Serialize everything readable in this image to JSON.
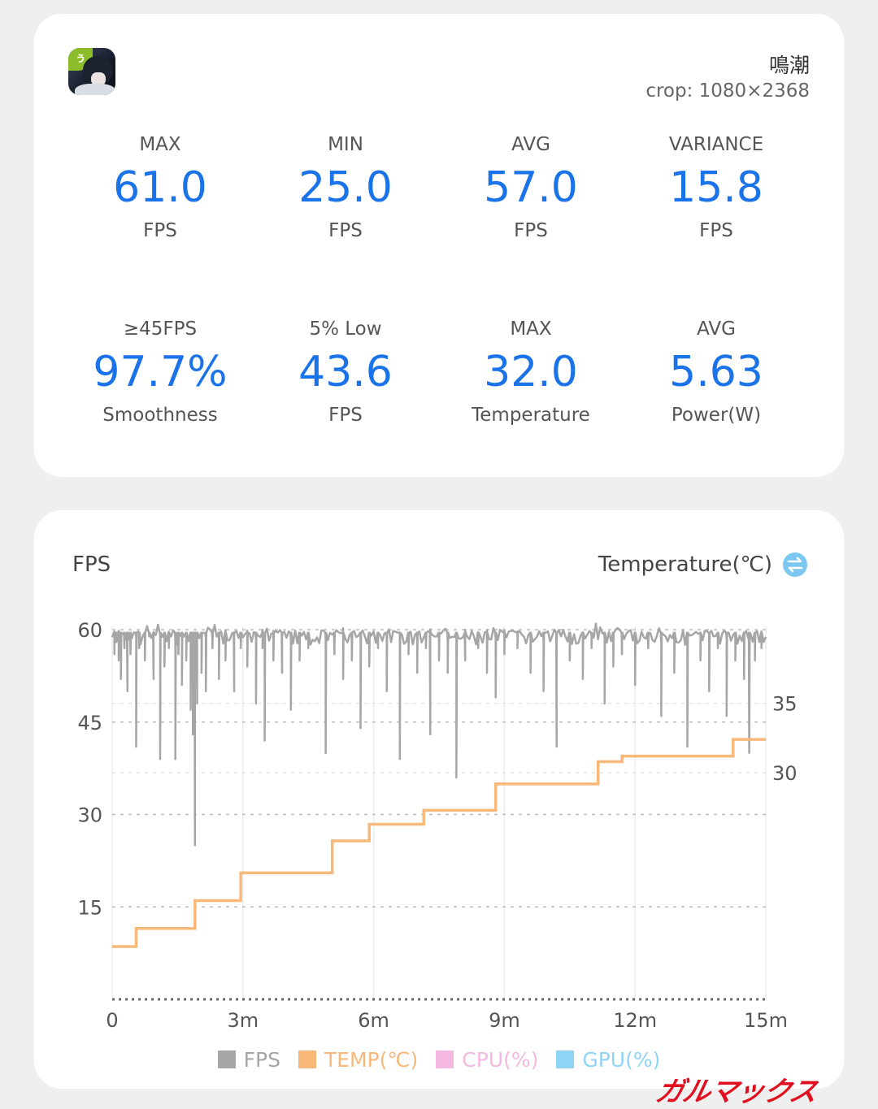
{
  "app": {
    "name": "鳴潮",
    "crop": "crop: 1080×2368"
  },
  "stats": [
    {
      "label": "MAX",
      "value": "61.0",
      "unit": "FPS"
    },
    {
      "label": "MIN",
      "value": "25.0",
      "unit": "FPS"
    },
    {
      "label": "AVG",
      "value": "57.0",
      "unit": "FPS"
    },
    {
      "label": "VARIANCE",
      "value": "15.8",
      "unit": "FPS"
    },
    {
      "label": "≥45FPS",
      "value": "97.7%",
      "unit": "Smoothness"
    },
    {
      "label": "5% Low",
      "value": "43.6",
      "unit": "FPS"
    },
    {
      "label": "MAX",
      "value": "32.0",
      "unit": "Temperature"
    },
    {
      "label": "AVG",
      "value": "5.63",
      "unit": "Power(W)"
    }
  ],
  "chart_header": {
    "left": "FPS",
    "right": "Temperature(℃)"
  },
  "colors": {
    "accent": "#1a73e8",
    "fps": "#a6a6a6",
    "temp": "#f7b87a",
    "cpu": "#f5b8e0",
    "gpu": "#8fd3f5",
    "swap_icon": "#7cc6f2"
  },
  "legend": [
    {
      "label": "FPS",
      "color": "#a6a6a6"
    },
    {
      "label": "TEMP(℃)",
      "color": "#f7b87a"
    },
    {
      "label": "CPU(%)",
      "color": "#f5b8e0"
    },
    {
      "label": "GPU(%)",
      "color": "#8fd3f5"
    }
  ],
  "watermark": "ガルマックス",
  "chart_data": {
    "type": "line",
    "x_unit": "minutes",
    "x_range": [
      0,
      15
    ],
    "x_ticks": [
      0,
      3,
      6,
      9,
      12,
      15
    ],
    "x_tick_labels": [
      "0",
      "3m",
      "6m",
      "9m",
      "12m",
      "15m"
    ],
    "y_left_range": [
      0,
      60
    ],
    "y_left_ticks": [
      15,
      30,
      45,
      60
    ],
    "y_right_range": [
      13.7,
      40.3
    ],
    "y_right_ticks": [
      30,
      35
    ],
    "grid": true,
    "fps_baseline": 60,
    "fps_dips": [
      [
        0.05,
        56
      ],
      [
        0.1,
        58
      ],
      [
        0.15,
        55
      ],
      [
        0.2,
        52
      ],
      [
        0.28,
        57
      ],
      [
        0.35,
        50
      ],
      [
        0.42,
        56
      ],
      [
        0.55,
        41
      ],
      [
        0.62,
        57
      ],
      [
        0.75,
        55
      ],
      [
        0.85,
        59
      ],
      [
        0.95,
        52
      ],
      [
        1.1,
        39
      ],
      [
        1.2,
        54
      ],
      [
        1.3,
        57
      ],
      [
        1.45,
        39
      ],
      [
        1.52,
        56
      ],
      [
        1.6,
        51
      ],
      [
        1.7,
        55
      ],
      [
        1.8,
        47
      ],
      [
        1.85,
        43
      ],
      [
        1.9,
        25
      ],
      [
        1.95,
        48
      ],
      [
        2.05,
        53
      ],
      [
        2.15,
        50
      ],
      [
        2.3,
        57
      ],
      [
        2.45,
        52
      ],
      [
        2.6,
        55
      ],
      [
        2.8,
        50
      ],
      [
        2.95,
        57
      ],
      [
        3.1,
        54
      ],
      [
        3.3,
        48
      ],
      [
        3.45,
        57
      ],
      [
        3.5,
        42
      ],
      [
        3.7,
        55
      ],
      [
        3.9,
        53
      ],
      [
        4.1,
        47
      ],
      [
        4.3,
        55
      ],
      [
        4.5,
        57
      ],
      [
        4.9,
        40
      ],
      [
        5.1,
        56
      ],
      [
        5.3,
        52
      ],
      [
        5.5,
        55
      ],
      [
        5.7,
        44
      ],
      [
        5.9,
        54
      ],
      [
        6.1,
        57
      ],
      [
        6.3,
        50
      ],
      [
        6.6,
        39
      ],
      [
        6.8,
        56
      ],
      [
        7.0,
        53
      ],
      [
        7.2,
        57
      ],
      [
        7.3,
        43
      ],
      [
        7.5,
        55
      ],
      [
        7.7,
        53
      ],
      [
        7.9,
        36
      ],
      [
        8.1,
        55
      ],
      [
        8.4,
        57
      ],
      [
        8.6,
        53
      ],
      [
        8.8,
        49
      ],
      [
        9.0,
        56
      ],
      [
        9.3,
        57
      ],
      [
        9.6,
        53
      ],
      [
        9.9,
        50
      ],
      [
        10.2,
        41
      ],
      [
        10.5,
        55
      ],
      [
        10.8,
        52
      ],
      [
        11.0,
        57
      ],
      [
        11.3,
        48
      ],
      [
        11.5,
        54
      ],
      [
        11.7,
        56
      ],
      [
        12.0,
        51
      ],
      [
        12.3,
        57
      ],
      [
        12.6,
        46
      ],
      [
        12.9,
        53
      ],
      [
        13.2,
        41
      ],
      [
        13.5,
        55
      ],
      [
        13.7,
        50
      ],
      [
        13.9,
        57
      ],
      [
        14.1,
        46
      ],
      [
        14.3,
        55
      ],
      [
        14.5,
        52
      ],
      [
        14.62,
        40
      ],
      [
        14.75,
        55
      ],
      [
        14.9,
        57
      ]
    ],
    "temp_steps": [
      [
        0,
        17.5
      ],
      [
        0.55,
        18.8
      ],
      [
        1.9,
        20.8
      ],
      [
        2.95,
        22.8
      ],
      [
        5.05,
        25.1
      ],
      [
        5.9,
        26.3
      ],
      [
        7.15,
        27.3
      ],
      [
        8.8,
        29.2
      ],
      [
        11.15,
        30.8
      ],
      [
        11.7,
        31.2
      ],
      [
        14.25,
        32.4
      ],
      [
        15,
        32.4
      ]
    ]
  }
}
